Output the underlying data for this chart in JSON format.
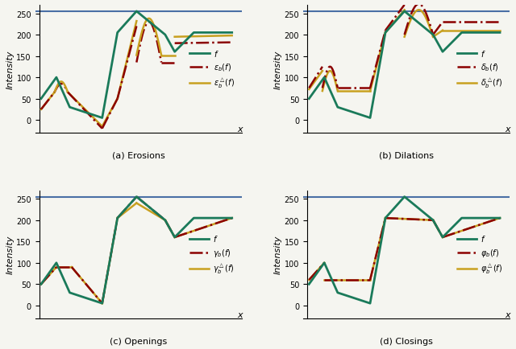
{
  "bg_color": "#f5f5f0",
  "line_color_f": "#1a7a5a",
  "line_color_erosion": "#8b0000",
  "line_color_log": "#c8a020",
  "hline_color": "#4a6fa5",
  "hline_y": 255,
  "ylim": [
    -20,
    270
  ],
  "xlim": [
    0,
    10
  ],
  "ylabel": "Intensity",
  "xlabel": "x",
  "titles": [
    "(a) Erosions",
    "(b) Dilations",
    "(c) Openings",
    "(d) Closings"
  ]
}
